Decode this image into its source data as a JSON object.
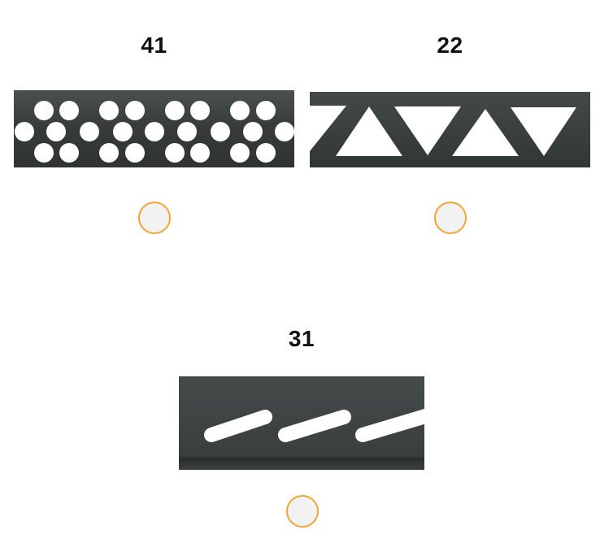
{
  "options": [
    {
      "id": "41",
      "title": "41",
      "pattern": "round-holes",
      "selected": false
    },
    {
      "id": "22",
      "title": "22",
      "pattern": "triangle-cutouts",
      "selected": false
    },
    {
      "id": "31",
      "title": "31",
      "pattern": "diagonal-slots",
      "selected": false
    }
  ],
  "colors": {
    "profile": "#3a3f3e",
    "radio_border": "#f0a535",
    "radio_fill": "#f2f2f2"
  }
}
